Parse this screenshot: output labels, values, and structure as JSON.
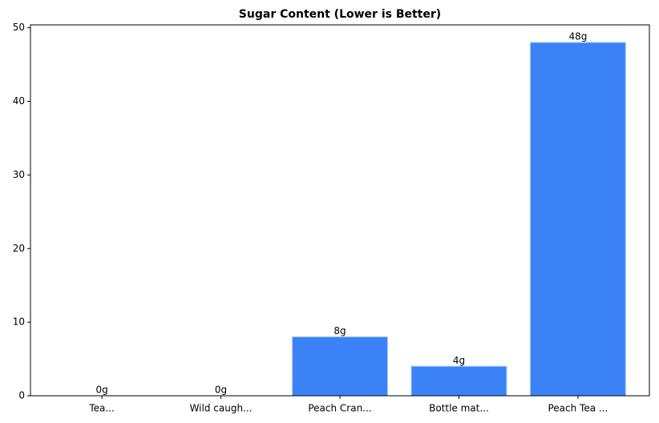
{
  "chart_data": {
    "type": "bar",
    "title": "Sugar Content (Lower is Better)",
    "categories": [
      "Tea...",
      "Wild caugh...",
      "Peach Cran...",
      "Bottle mat...",
      "Peach Tea ..."
    ],
    "values": [
      0,
      0,
      8,
      4,
      48
    ],
    "value_labels": [
      "0g",
      "0g",
      "8g",
      "4g",
      "48g"
    ],
    "color": "#3b82f6",
    "ylim": [
      0,
      50.4
    ],
    "yticks": [
      0,
      10,
      20,
      30,
      40,
      50
    ],
    "grid": false
  }
}
